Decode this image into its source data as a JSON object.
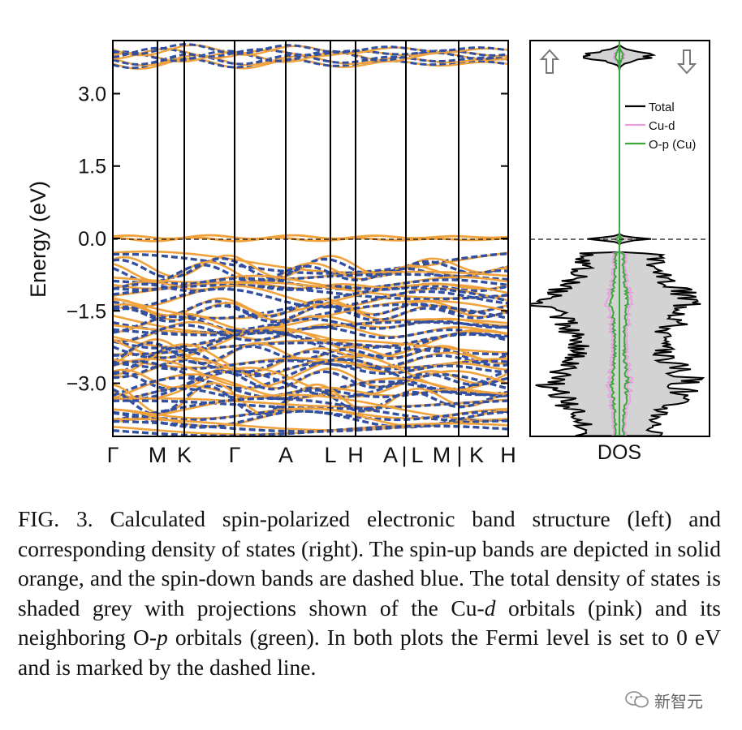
{
  "chart_data": [
    {
      "type": "line",
      "panel": "band-structure",
      "ylabel": "Energy (eV)",
      "ylim": [
        -4.1,
        4.1
      ],
      "y_ticks": [
        "3.0",
        "1.5",
        "0.0",
        "−1.5",
        "−3.0"
      ],
      "y_tick_values": [
        3.0,
        1.5,
        0.0,
        -1.5,
        -3.0
      ],
      "k_path_labels": [
        "Γ",
        "M",
        "K",
        "Γ",
        "A",
        "L",
        "H",
        "A",
        "|",
        "L",
        "M",
        "|",
        "K",
        "H"
      ],
      "high_symmetry_points": [
        "Γ",
        "M",
        "K",
        "Γ",
        "A",
        "L",
        "H",
        "A|L",
        "M|K",
        "H"
      ],
      "fermi_level": 0.0,
      "series": [
        {
          "style": "solid",
          "color": "#f0a23c"
        },
        {
          "style": "dashed",
          "color": "#3350a0"
        }
      ],
      "energy_windows": {
        "upper_band_group": [
          3.55,
          3.95
        ],
        "flat_band_near_fermi": [
          -0.05,
          0.08
        ],
        "valence_manifold": [
          -4.1,
          -0.35
        ]
      }
    },
    {
      "type": "area",
      "panel": "density-of-states",
      "xlabel": "DOS",
      "ylim": [
        -4.1,
        4.1
      ],
      "fermi_level": 0.0,
      "legend": [
        "Total",
        "Cu-d",
        "O-p (Cu)"
      ],
      "legend_position": "upper-right",
      "series": [
        {
          "name": "Total",
          "color": "#000000",
          "fill": "#d3d3d3"
        },
        {
          "name": "Cu-d",
          "color": "#e8a0e0"
        },
        {
          "name": "O-p (Cu)",
          "color": "#3aa83a"
        }
      ],
      "spin_arrows": [
        "up",
        "down"
      ]
    }
  ],
  "caption": {
    "label": "FIG. 3.",
    "parts": [
      "Calculated spin-polarized electronic band structure (left) and corresponding density of states (right). The spin-up bands are depicted in solid orange, and the spin-down bands are dashed blue. The total density of states is shaded grey with projections shown of the Cu-",
      "d",
      " orbitals (pink) and its neighboring O-",
      "p",
      " orbitals (green). In both plots the Fermi level is set to 0 eV and is marked by the dashed line."
    ]
  },
  "watermark": "新智元",
  "colors": {
    "spin_up": "#f0a23c",
    "spin_down": "#3350a0",
    "dos_fill": "#d3d3d3",
    "cu_d": "#e8a0e0",
    "o_p": "#3aa83a"
  }
}
